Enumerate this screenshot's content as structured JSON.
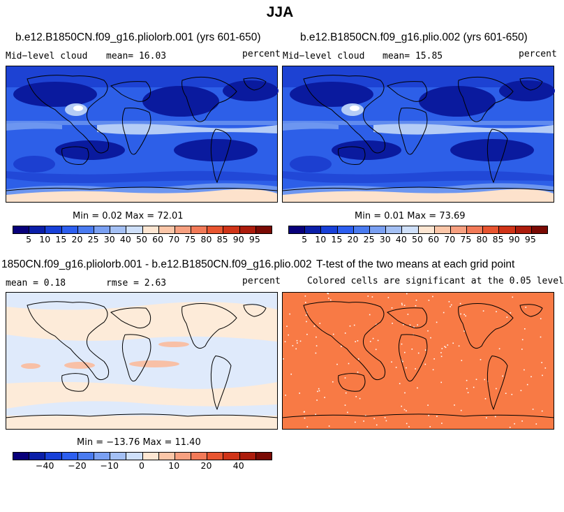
{
  "title": "JJA",
  "panels": [
    {
      "title": "b.e12.B1850CN.f09_g16.pliolorb.001 (yrs 601-650)",
      "variable": "Mid−level cloud",
      "mean_text": "mean=  16.03",
      "units": "percent",
      "minmax_text": "Min =   0.02 Max =  72.01"
    },
    {
      "title": "b.e12.B1850CN.f09_g16.plio.002 (yrs 601-650)",
      "variable": "Mid−level cloud",
      "mean_text": "mean=  15.85",
      "units": "percent",
      "minmax_text": "Min =   0.01 Max =  73.69"
    },
    {
      "title": "1850CN.f09_g16.pliolorb.001 - b.e12.B1850CN.f09_g16.plio.002",
      "mean_text": "mean =   0.18",
      "rmse_text": "rmse =   2.63",
      "units": "percent",
      "minmax_text": "Min = −13.76 Max =  11.40"
    },
    {
      "title": "T-test of the two means at each grid point",
      "subtitle": "Colored cells are significant at the 0.05 level"
    }
  ],
  "colorbar_abs": {
    "colors": [
      "#08007a",
      "#0a1ea8",
      "#1840d8",
      "#2d5ff0",
      "#4a7bf0",
      "#7aa0f2",
      "#a4c0f4",
      "#cfe0fa",
      "#fde6d2",
      "#fbc6a8",
      "#f7a080",
      "#f27a58",
      "#e85530",
      "#d03418",
      "#ac1c0c",
      "#7a0a04"
    ],
    "labels": [
      "5",
      "10",
      "15",
      "20",
      "25",
      "30",
      "40",
      "50",
      "60",
      "70",
      "75",
      "80",
      "85",
      "90",
      "95"
    ]
  },
  "colorbar_diff": {
    "colors": [
      "#08007a",
      "#0a1ea8",
      "#1840d8",
      "#2d5ff0",
      "#4a7bf0",
      "#7aa0f2",
      "#a4c0f4",
      "#cfe0fa",
      "#fde6d2",
      "#fbc6a8",
      "#f7a080",
      "#f27a58",
      "#e85530",
      "#d03418",
      "#ac1c0c",
      "#7a0a04"
    ],
    "labels": [
      "−40",
      "−20",
      "−10",
      "0",
      "10",
      "20",
      "40"
    ]
  },
  "map_colors": {
    "deep": "#0a1a9e",
    "mid": "#1c3fd0",
    "base": "#2d5fe8",
    "light": "#6d96f0",
    "pale": "#b4ccf6",
    "warm": "#fde2cc",
    "diff_blue": "#dfeafb",
    "diff_warm": "#fdebd9",
    "diff_red": "#f8c0a6",
    "ttest": "#f87a45"
  }
}
